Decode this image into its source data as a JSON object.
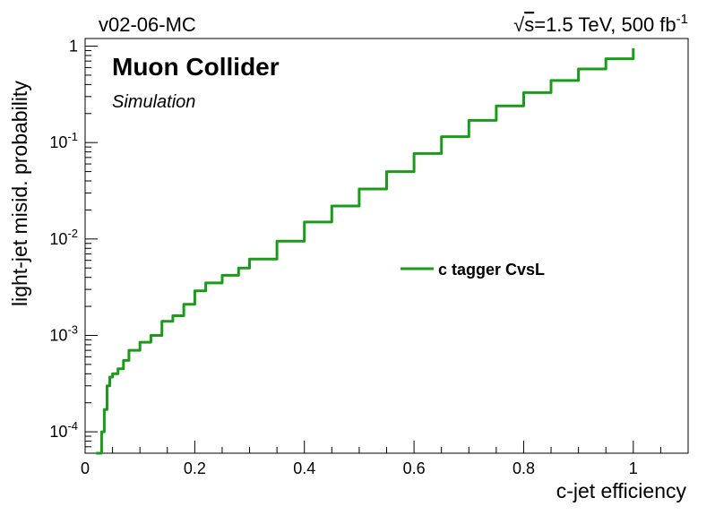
{
  "header": {
    "left_label": "v02-06-MC",
    "right_label": {
      "sqrt": "√",
      "s": "s",
      "main": "=1.5 TeV, 500 fb",
      "sup": "-1"
    }
  },
  "overlay": {
    "experiment": "Muon Collider",
    "status": "Simulation"
  },
  "chart_data": {
    "type": "line",
    "title": "",
    "xlabel": "c-jet efficiency",
    "ylabel": "light-jet misid. probability",
    "xlim": [
      0,
      1.1
    ],
    "ylim": [
      6e-05,
      1.2
    ],
    "y_scale": "log",
    "x_ticks": [
      0,
      0.2,
      0.4,
      0.6,
      0.8,
      1
    ],
    "x_tick_labels": [
      "0",
      "0.2",
      "0.4",
      "0.6",
      "0.8",
      "1"
    ],
    "y_ticks": [
      {
        "base": "10",
        "exp": "-4",
        "value": 0.0001
      },
      {
        "base": "10",
        "exp": "-3",
        "value": 0.001
      },
      {
        "base": "10",
        "exp": "-2",
        "value": 0.01
      },
      {
        "base": "10",
        "exp": "-1",
        "value": 0.1
      },
      {
        "base": "1",
        "exp": "",
        "value": 1
      }
    ],
    "grid": false,
    "legend_position": "center-right",
    "series": [
      {
        "name": "c tagger CvsL",
        "color": "#1a9c1a",
        "x": [
          0.02,
          0.03,
          0.035,
          0.04,
          0.045,
          0.05,
          0.06,
          0.07,
          0.08,
          0.1,
          0.12,
          0.14,
          0.16,
          0.18,
          0.2,
          0.22,
          0.25,
          0.28,
          0.3,
          0.35,
          0.4,
          0.45,
          0.5,
          0.55,
          0.6,
          0.65,
          0.7,
          0.75,
          0.8,
          0.85,
          0.9,
          0.95,
          1.0
        ],
        "y": [
          6e-05,
          0.0001,
          0.00017,
          0.0003,
          0.00037,
          0.0004,
          0.00045,
          0.00055,
          0.0007,
          0.00085,
          0.001,
          0.0014,
          0.0016,
          0.0021,
          0.0029,
          0.0035,
          0.0042,
          0.005,
          0.0062,
          0.0095,
          0.015,
          0.022,
          0.033,
          0.05,
          0.077,
          0.115,
          0.17,
          0.24,
          0.33,
          0.44,
          0.58,
          0.74,
          0.95
        ]
      }
    ]
  }
}
